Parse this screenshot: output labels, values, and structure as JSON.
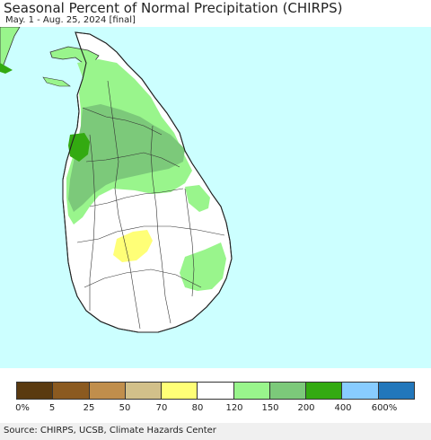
{
  "header": {
    "title": "Seasonal Percent of Normal Precipitation (CHIRPS)",
    "subtitle": "May. 1 - Aug. 25, 2024 [final]"
  },
  "colors": {
    "ocean": "#ccffff",
    "land_default": "#ffffff",
    "border": "#333333"
  },
  "legend": {
    "swatches": [
      {
        "color": "#5a3a10",
        "label": "0%"
      },
      {
        "color": "#8b5a20",
        "label": "5"
      },
      {
        "color": "#c08e4c",
        "label": "25"
      },
      {
        "color": "#d2c08a",
        "label": "50"
      },
      {
        "color": "#ffff77",
        "label": "70"
      },
      {
        "color": "#ffffff",
        "label": "80"
      },
      {
        "color": "#99f58c",
        "label": "120"
      },
      {
        "color": "#7cc97a",
        "label": "150"
      },
      {
        "color": "#33aa11",
        "label": "200"
      },
      {
        "color": "#88ccff",
        "label": "400"
      },
      {
        "color": "#2277bb",
        "label": "600%"
      }
    ],
    "tick_labels": [
      "0%",
      "5",
      "25",
      "50",
      "70",
      "80",
      "120",
      "150",
      "200",
      "400",
      "600%"
    ]
  },
  "footer": {
    "source": "Source: CHIRPS, UCSB, Climate Hazards Center"
  }
}
